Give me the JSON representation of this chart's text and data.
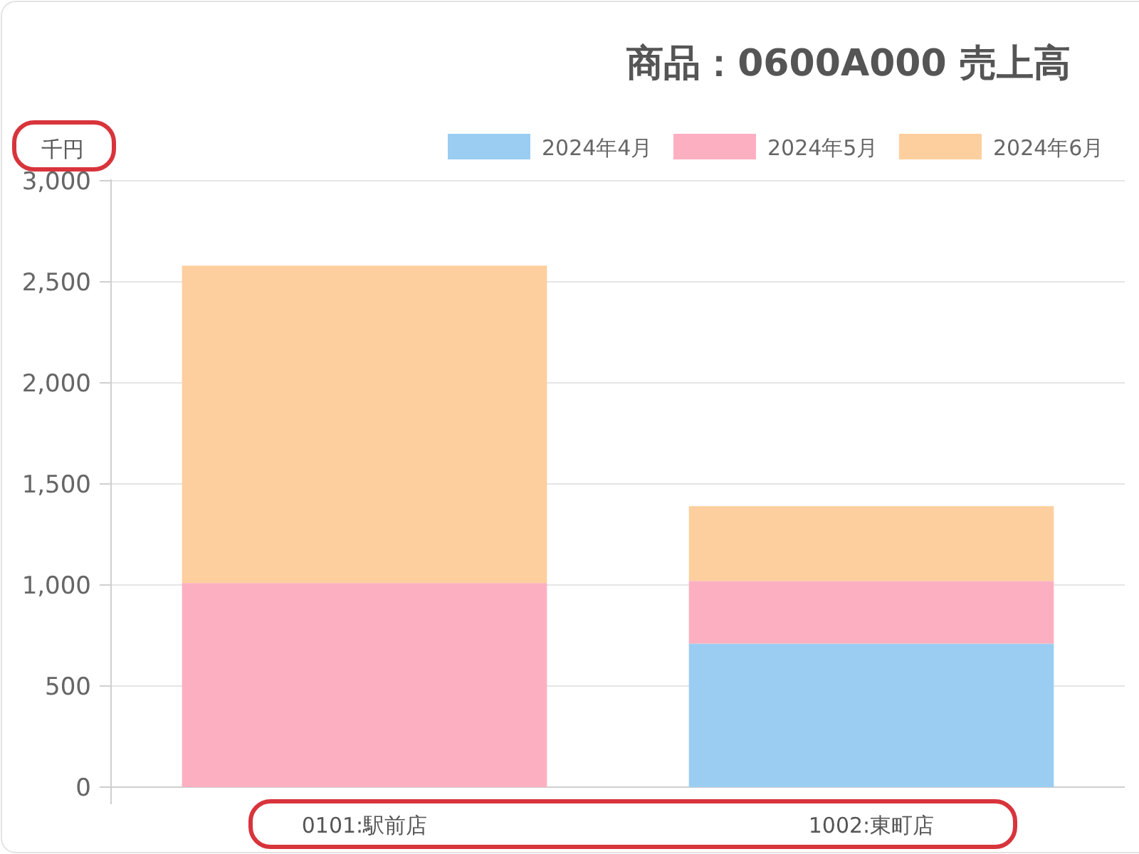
{
  "chart_data": {
    "type": "bar",
    "stacked": true,
    "title": "商品：0600A000 売上高",
    "ylabel": "千円",
    "categories": [
      "0101:駅前店",
      "1002:東町店"
    ],
    "series": [
      {
        "name": "2024年4月",
        "color": "#9bcdf2",
        "values": [
          0,
          710
        ]
      },
      {
        "name": "2024年5月",
        "color": "#fdafc2",
        "values": [
          1010,
          310
        ]
      },
      {
        "name": "2024年6月",
        "color": "#fdcf9e",
        "values": [
          1570,
          370
        ]
      }
    ],
    "ylim": [
      0,
      3000
    ],
    "yticks": [
      0,
      500,
      {
        "value": 1000,
        "label": "1,000"
      },
      {
        "value": 1500,
        "label": "1,500"
      },
      {
        "value": 2000,
        "label": "2,000"
      },
      {
        "value": 2500,
        "label": "2,500"
      },
      {
        "value": 3000,
        "label": "3,000"
      }
    ],
    "grid": true,
    "legend": "top"
  }
}
